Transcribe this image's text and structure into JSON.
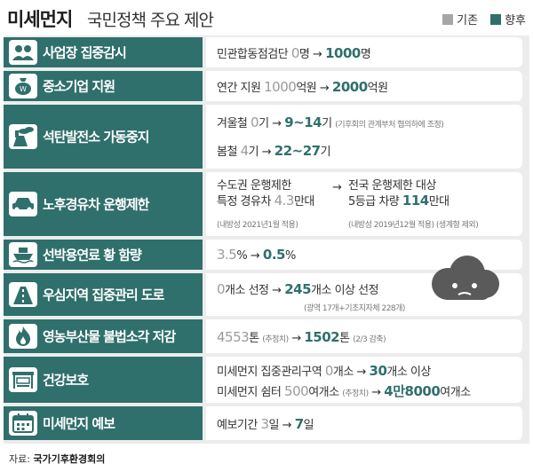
{
  "header": {
    "title_bold": "미세먼지",
    "title_rest": "국민정책 주요 제안",
    "legend_before": "기존",
    "legend_after": "향후"
  },
  "colors": {
    "accent": "#2f6f6c",
    "legend_before": "#a6a6a6",
    "legend_after": "#2f6f6c",
    "panel": "#ececec",
    "old_value": "#9b9b9b"
  },
  "rows": [
    {
      "label": "사업장 집중감시",
      "icon": "people-icon",
      "text": "민관합동점검단",
      "old": "0",
      "old_unit": "명",
      "arrow": "→",
      "new": "1000",
      "new_unit": "명"
    },
    {
      "label": "중소기업 지원",
      "icon": "money-bag-icon",
      "text": "연간 지원",
      "old": "1000",
      "old_unit": "억원",
      "arrow": "→",
      "new": "2000",
      "new_unit": "억원"
    },
    {
      "label": "석탄발전소 가동중지",
      "icon": "power-plant-icon",
      "line1": {
        "text": "겨울철",
        "old": "0",
        "old_unit": "기",
        "arrow": "→",
        "new": "9~14",
        "new_unit": "기",
        "note": "(기후회의 관계부처 협의하에 조정)"
      },
      "line2": {
        "text": "봄철",
        "old": "4",
        "old_unit": "기",
        "arrow": "→",
        "new": "22~27",
        "new_unit": "기"
      }
    },
    {
      "label": "노후경유차 운행제한",
      "icon": "car-icon",
      "before_l1": "수도권 운행제한",
      "before_l2_text": "특정 경유차",
      "before_l2_value": "4.3",
      "before_l2_unit": "만대",
      "before_note": "(내방성 2021년1월 적용)",
      "arrow": "→",
      "after_l1": "전국 운행제한 대상",
      "after_l2_text": "5등급 차량",
      "after_l2_value": "114",
      "after_l2_unit": "만대",
      "after_note": "(내방성 2019년12월 적용) (생계형 제외)"
    },
    {
      "label": "선박용연료 황 함량",
      "icon": "ship-icon",
      "old": "3.5",
      "old_unit": "%",
      "arrow": "→",
      "new": "0.5",
      "new_unit": "%"
    },
    {
      "label": "우심지역 집중관리 도로",
      "icon": "road-icon",
      "old": "0",
      "old_unit": "개소 선정",
      "arrow": "→",
      "new": "245",
      "new_unit": "개소 이상 선정",
      "note": "(광역 17개+기초지자체 228개)"
    },
    {
      "label": "영농부산물 불법소각 저감",
      "icon": "fire-icon",
      "old": "4553",
      "old_unit": "톤",
      "old_note": "(추정치)",
      "arrow": "→",
      "new": "1502",
      "new_unit": "톤",
      "new_note": "(2/3 감축)"
    },
    {
      "label": "건강보호",
      "icon": "bus-stop-icon",
      "line1": {
        "text": "미세먼지 집중관리구역",
        "old": "0",
        "old_unit": "개소",
        "arrow": "→",
        "new": "30",
        "new_unit": "개소 이상"
      },
      "line2": {
        "text": "미세먼지 쉼터",
        "old": "500",
        "old_unit": "여개소",
        "old_note": "(추정치)",
        "arrow": "→",
        "new": "4만8000",
        "new_unit": "여개소"
      }
    },
    {
      "label": "미세먼지 예보",
      "icon": "calendar-icon",
      "text": "예보기간",
      "old": "3",
      "old_unit": "일",
      "arrow": "→",
      "new": "7",
      "new_unit": "일"
    }
  ],
  "source": {
    "label": "자료:",
    "value": "국가기후환경회의"
  }
}
